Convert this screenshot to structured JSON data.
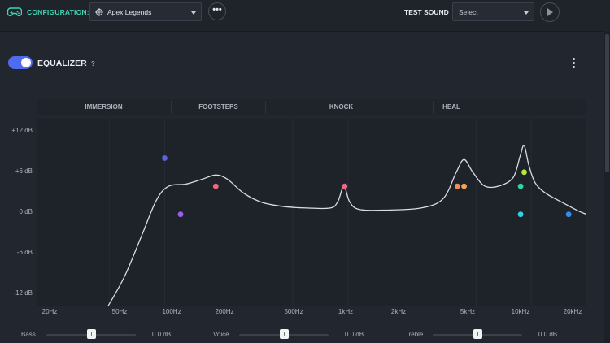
{
  "header": {
    "config_label": "CONFIGURATION:",
    "config_value": "Apex Legends",
    "more_label": "•••",
    "test_sound_label": "TEST SOUND",
    "test_sound_value": "Select"
  },
  "equalizer": {
    "title": "EQUALIZER",
    "help": "?",
    "enabled": true
  },
  "presets": [
    "IMMERSION",
    "FOOTSTEPS",
    "KNOCK",
    "HEAL"
  ],
  "chart_data": {
    "type": "line",
    "y_ticks": [
      "+12 dB",
      "+6 dB",
      "0 dB",
      "-6 dB",
      "-12 dB"
    ],
    "y_tick_values": [
      12,
      6,
      0,
      -6,
      -12
    ],
    "x_ticks": [
      "20Hz",
      "50Hz",
      "100Hz",
      "200Hz",
      "500Hz",
      "1kHz",
      "2kHz",
      "5kHz",
      "10kHz",
      "20kHz"
    ],
    "x_tick_values": [
      20,
      50,
      100,
      200,
      500,
      1000,
      2000,
      5000,
      10000,
      20000
    ],
    "x_scale": "log",
    "xlim": [
      20,
      20000
    ],
    "ylim": [
      -13,
      13.5
    ],
    "curve": [
      {
        "f": 48,
        "db": -13.5
      },
      {
        "f": 60,
        "db": -9
      },
      {
        "f": 75,
        "db": -3
      },
      {
        "f": 90,
        "db": 2
      },
      {
        "f": 105,
        "db": 4
      },
      {
        "f": 130,
        "db": 4.3
      },
      {
        "f": 160,
        "db": 5
      },
      {
        "f": 190,
        "db": 5.6
      },
      {
        "f": 220,
        "db": 5
      },
      {
        "f": 270,
        "db": 3
      },
      {
        "f": 340,
        "db": 1.7
      },
      {
        "f": 450,
        "db": 1.1
      },
      {
        "f": 600,
        "db": 0.9
      },
      {
        "f": 800,
        "db": 0.9
      },
      {
        "f": 880,
        "db": 1.8
      },
      {
        "f": 950,
        "db": 4
      },
      {
        "f": 1020,
        "db": 1.8
      },
      {
        "f": 1150,
        "db": 0.7
      },
      {
        "f": 1600,
        "db": 0.6
      },
      {
        "f": 2500,
        "db": 0.9
      },
      {
        "f": 3300,
        "db": 2.2
      },
      {
        "f": 3900,
        "db": 6
      },
      {
        "f": 4300,
        "db": 7.8
      },
      {
        "f": 4800,
        "db": 6
      },
      {
        "f": 5600,
        "db": 4
      },
      {
        "f": 6800,
        "db": 4.1
      },
      {
        "f": 8000,
        "db": 5.3
      },
      {
        "f": 8700,
        "db": 8.3
      },
      {
        "f": 9150,
        "db": 9.8
      },
      {
        "f": 9700,
        "db": 7
      },
      {
        "f": 10500,
        "db": 4.5
      },
      {
        "f": 12000,
        "db": 3
      },
      {
        "f": 15000,
        "db": 1.6
      },
      {
        "f": 18000,
        "db": 0.5
      },
      {
        "f": 20000,
        "db": 0
      }
    ],
    "points": [
      {
        "f": 100,
        "db": 8,
        "color": "#5b63e3"
      },
      {
        "f": 122,
        "db": 0,
        "color": "#9b5ef0"
      },
      {
        "f": 190,
        "db": 4,
        "color": "#f2667c"
      },
      {
        "f": 960,
        "db": 4,
        "color": "#f2667c"
      },
      {
        "f": 3950,
        "db": 4,
        "color": "#f38a5a"
      },
      {
        "f": 4300,
        "db": 4,
        "color": "#f3a05a"
      },
      {
        "f": 8750,
        "db": 4,
        "color": "#2ad6a8"
      },
      {
        "f": 9150,
        "db": 6,
        "color": "#b6e83a"
      },
      {
        "f": 8750,
        "db": 0,
        "color": "#2ed2e6"
      },
      {
        "f": 16000,
        "db": 0,
        "color": "#2f8ff0"
      }
    ]
  },
  "sliders": [
    {
      "label": "Bass",
      "value": "0.0 dB",
      "level": 0
    },
    {
      "label": "Voice",
      "value": "0.0 dB",
      "level": 0
    },
    {
      "label": "Treble",
      "value": "0.0 dB",
      "level": 0
    }
  ],
  "icons": {
    "config": "gamepad-icon",
    "game": "game-logo-icon",
    "play": "play-icon",
    "menu": "kebab-menu-icon"
  },
  "colors": {
    "accent_teal": "#3fd6b5",
    "toggle_blue": "#4f6bf0",
    "curve": "#d9dce1"
  }
}
